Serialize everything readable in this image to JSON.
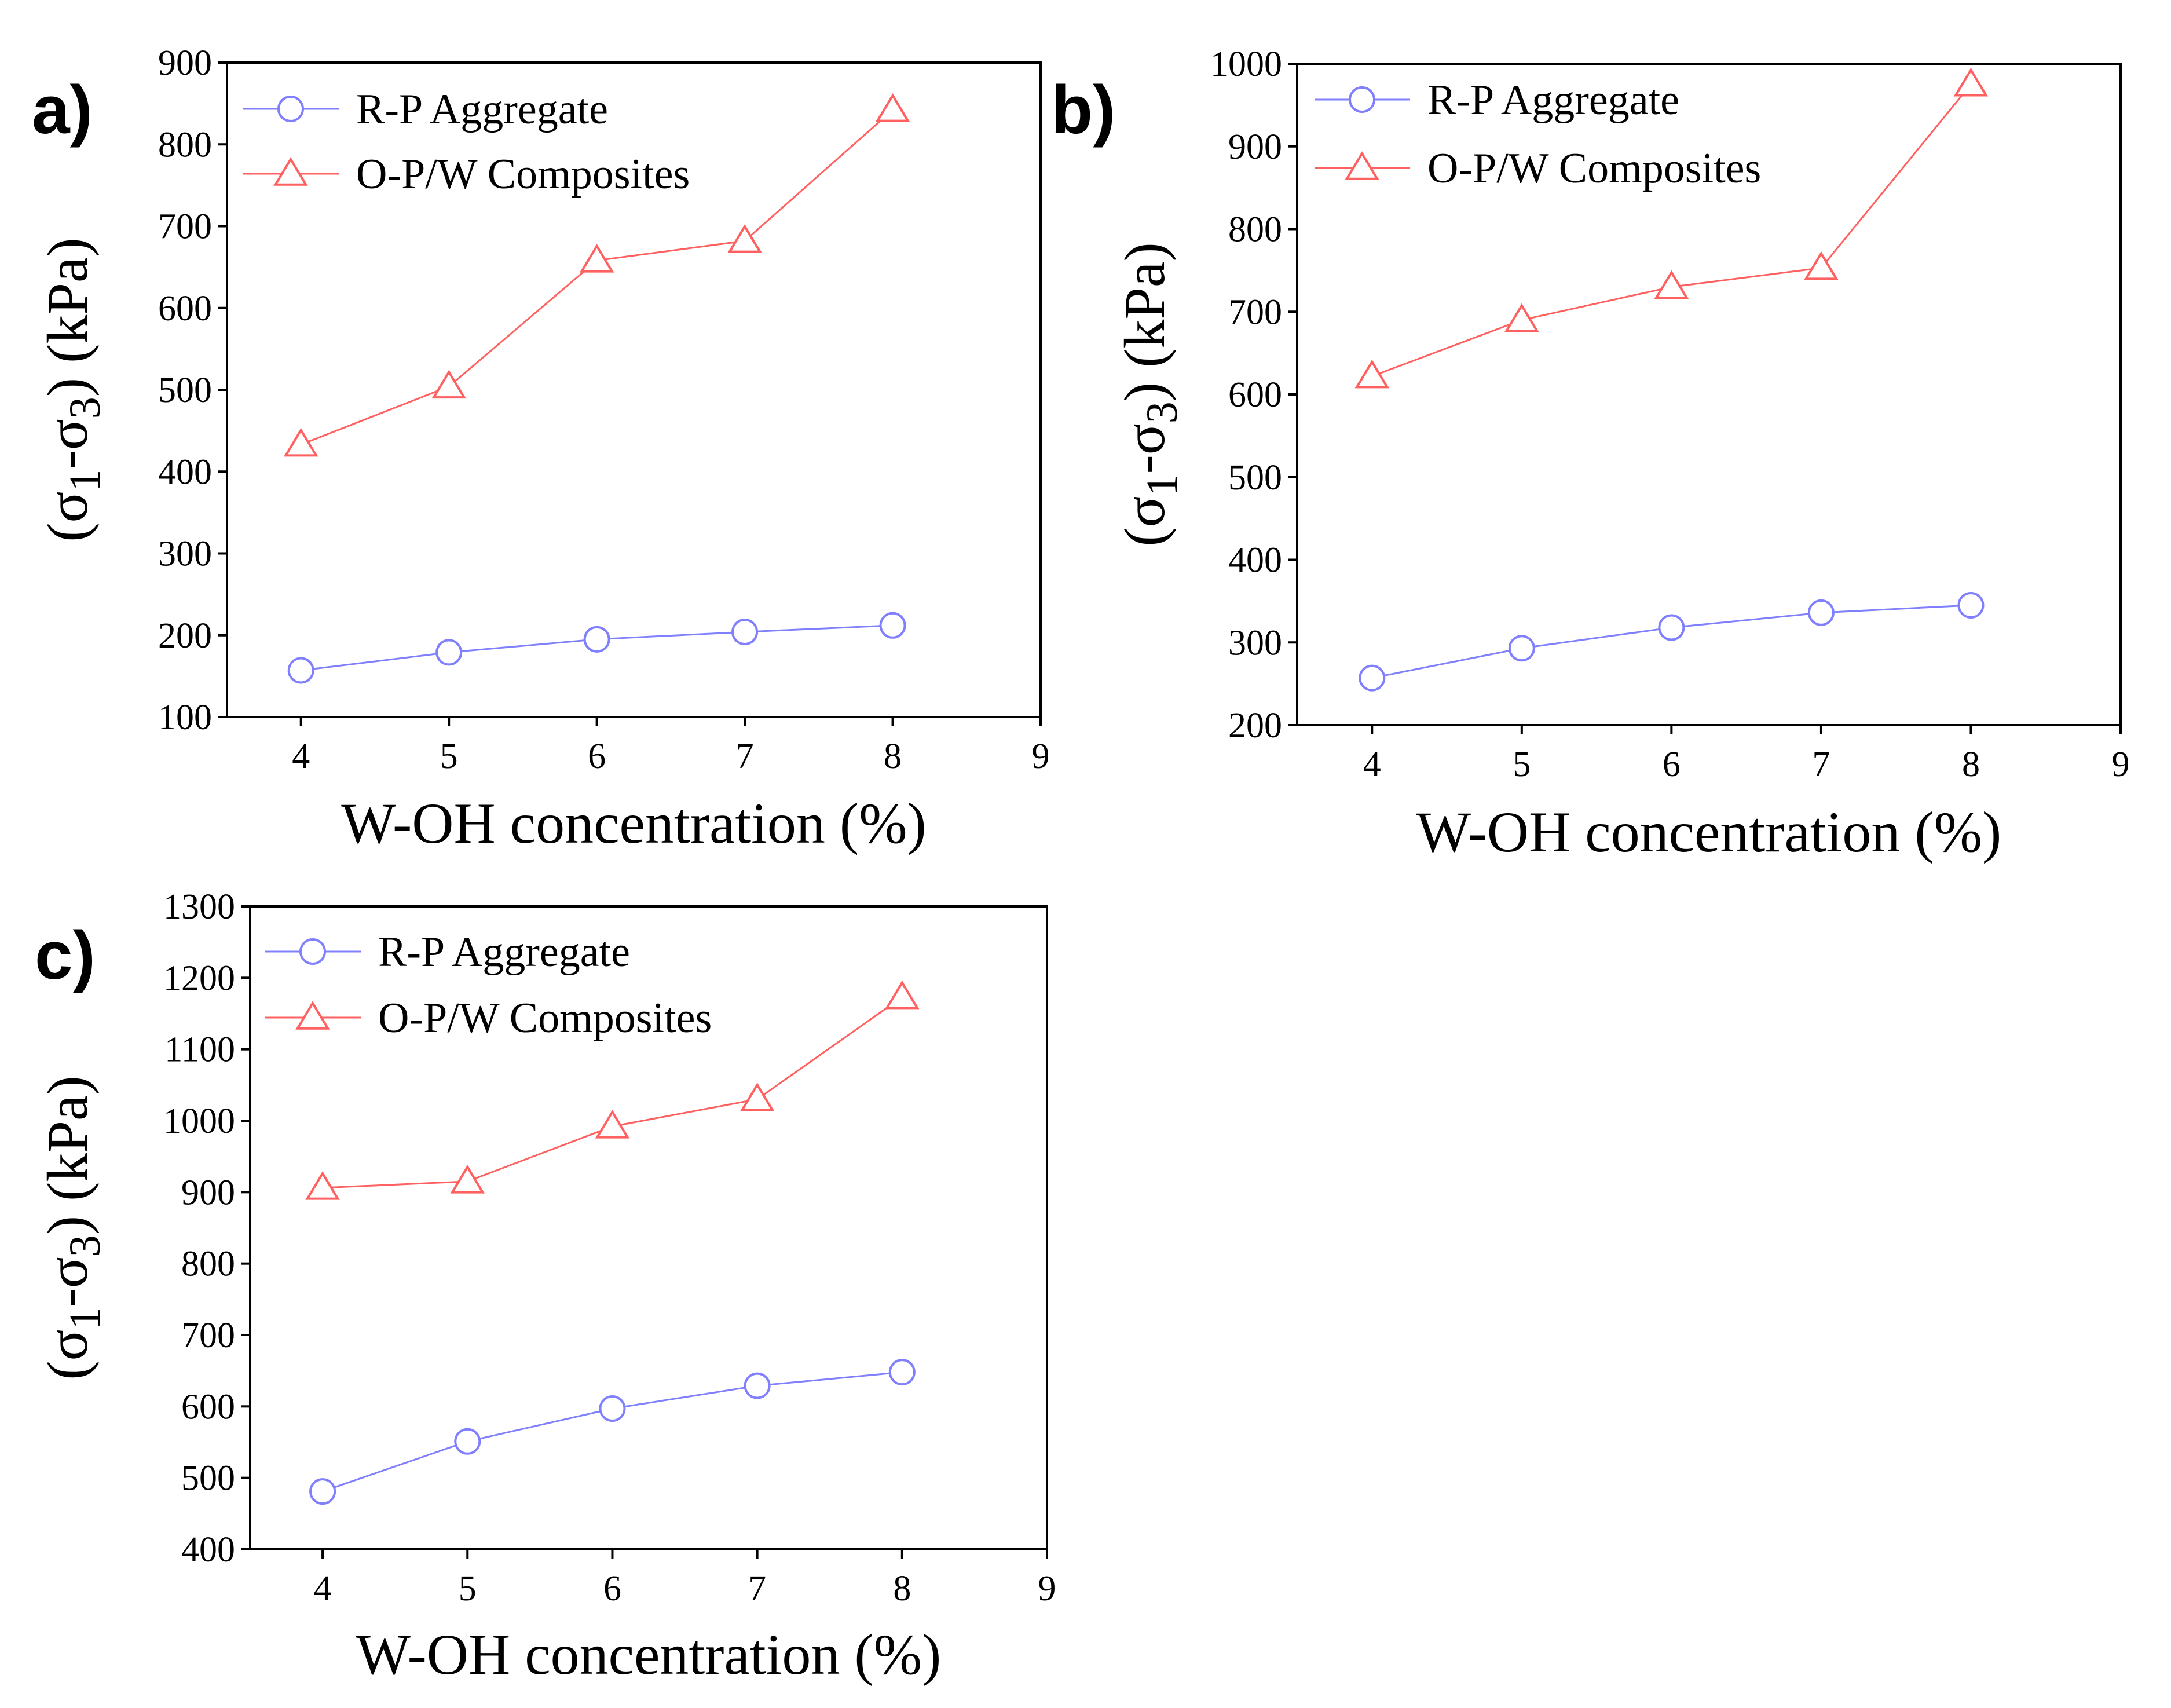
{
  "chart_data": [
    {
      "type": "line",
      "panel_label": "a)",
      "xlabel": "W-OH concentration (%)",
      "ylabel_parts": [
        "(σ",
        "1",
        "-σ",
        "3",
        ") (kPa)"
      ],
      "x_ticks": [
        4,
        5,
        6,
        7,
        8,
        9
      ],
      "y_ticks": [
        100,
        200,
        300,
        400,
        500,
        600,
        700,
        800,
        900
      ],
      "xlim": [
        3.5,
        9
      ],
      "ylim": [
        100,
        900
      ],
      "legend_position": "top-left",
      "series": [
        {
          "name": "R-P Aggregate",
          "marker": "circle",
          "color": "#8080ff",
          "x": [
            4,
            5,
            6,
            7,
            8
          ],
          "values": [
            157,
            179,
            195,
            204,
            212
          ]
        },
        {
          "name": "O-P/W Composites",
          "marker": "triangle",
          "color": "#ff6060",
          "x": [
            4,
            5,
            6,
            7,
            8
          ],
          "values": [
            433,
            504,
            658,
            682,
            842
          ]
        }
      ]
    },
    {
      "type": "line",
      "panel_label": "b)",
      "xlabel": "W-OH concentration (%)",
      "ylabel_parts": [
        "(σ",
        "1",
        "-σ",
        "3",
        ") (kPa)"
      ],
      "x_ticks": [
        4,
        5,
        6,
        7,
        8,
        9
      ],
      "y_ticks": [
        200,
        300,
        400,
        500,
        600,
        700,
        800,
        900,
        1000
      ],
      "xlim": [
        3.5,
        9
      ],
      "ylim": [
        200,
        1000
      ],
      "legend_position": "top-left",
      "series": [
        {
          "name": "R-P Aggregate",
          "marker": "circle",
          "color": "#8080ff",
          "x": [
            4,
            5,
            6,
            7,
            8
          ],
          "values": [
            257,
            293,
            318,
            336,
            345
          ]
        },
        {
          "name": "O-P/W Composites",
          "marker": "triangle",
          "color": "#ff6060",
          "x": [
            4,
            5,
            6,
            7,
            8
          ],
          "values": [
            622,
            690,
            730,
            753,
            975
          ]
        }
      ]
    },
    {
      "type": "line",
      "panel_label": "c)",
      "xlabel": "W-OH concentration (%)",
      "ylabel_parts": [
        "(σ",
        "1",
        "-σ",
        "3",
        ") (kPa)"
      ],
      "x_ticks": [
        4,
        5,
        6,
        7,
        8,
        9
      ],
      "y_ticks": [
        400,
        500,
        600,
        700,
        800,
        900,
        1000,
        1100,
        1200,
        1300
      ],
      "xlim": [
        3.5,
        9
      ],
      "ylim": [
        400,
        1300
      ],
      "legend_position": "top-left",
      "series": [
        {
          "name": "R-P Aggregate",
          "marker": "circle",
          "color": "#8080ff",
          "x": [
            4,
            5,
            6,
            7,
            8
          ],
          "values": [
            481,
            551,
            597,
            629,
            648
          ]
        },
        {
          "name": "O-P/W Composites",
          "marker": "triangle",
          "color": "#ff6060",
          "x": [
            4,
            5,
            6,
            7,
            8
          ],
          "values": [
            906,
            915,
            992,
            1030,
            1173
          ]
        }
      ]
    }
  ]
}
